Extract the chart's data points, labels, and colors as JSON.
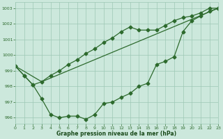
{
  "line1_x": [
    0,
    1,
    2,
    3,
    4,
    5,
    6,
    7,
    8,
    9,
    10,
    11,
    12,
    13,
    14,
    15,
    16,
    17,
    18,
    19,
    20,
    21,
    22,
    23
  ],
  "line1_y": [
    999.3,
    998.7,
    998.1,
    998.3,
    998.7,
    999.0,
    999.4,
    999.7,
    1000.1,
    1000.4,
    1000.8,
    1001.1,
    1001.5,
    1001.8,
    1001.6,
    1001.6,
    1001.6,
    1001.9,
    1002.2,
    1002.4,
    1002.5,
    1002.7,
    1003.0,
    1003.0
  ],
  "line2_x": [
    0,
    1,
    2,
    3,
    4,
    5,
    6,
    7,
    8,
    9,
    10,
    11,
    12,
    13,
    14,
    15,
    16,
    17,
    18,
    19,
    20,
    21,
    22,
    23
  ],
  "line2_y": [
    999.3,
    998.7,
    998.1,
    997.2,
    996.2,
    996.0,
    996.1,
    996.1,
    995.9,
    996.2,
    996.9,
    997.0,
    997.3,
    997.55,
    998.0,
    998.2,
    999.4,
    999.6,
    999.9,
    1001.5,
    1002.2,
    1002.5,
    1002.8,
    1003.0
  ],
  "line3_x": [
    0,
    3,
    23
  ],
  "line3_y": [
    999.3,
    998.3,
    1003.0
  ],
  "line_color": "#2d6a2d",
  "marker": "D",
  "markersize": 2.5,
  "bg_color": "#cce8dc",
  "grid_color": "#9ec8b4",
  "xlabel": "Graphe pression niveau de la mer (hPa)",
  "xlabel_color": "#1a4a1a",
  "ylabel_ticks": [
    996,
    997,
    998,
    999,
    1000,
    1001,
    1002,
    1003
  ],
  "xticks": [
    0,
    1,
    2,
    3,
    4,
    5,
    6,
    7,
    8,
    9,
    10,
    11,
    12,
    13,
    14,
    15,
    16,
    17,
    18,
    19,
    20,
    21,
    22,
    23
  ],
  "xlim": [
    0,
    23
  ],
  "ylim": [
    995.6,
    1003.4
  ]
}
